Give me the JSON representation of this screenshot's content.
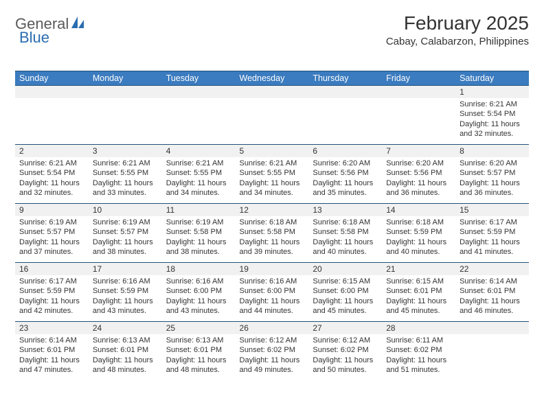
{
  "brand": {
    "part1": "General",
    "part2": "Blue"
  },
  "title": "February 2025",
  "location": "Cabay, Calabarzon, Philippines",
  "colors": {
    "header_bg": "#3b7bbf",
    "header_text": "#ffffff",
    "border": "#1f4f7a",
    "daynum_bg": "#f1f1f1",
    "text": "#333333",
    "logo_gray": "#5a5a5a",
    "logo_blue": "#2a6db0"
  },
  "weekdays": [
    "Sunday",
    "Monday",
    "Tuesday",
    "Wednesday",
    "Thursday",
    "Friday",
    "Saturday"
  ],
  "weeks": [
    [
      {
        "n": "",
        "lines": []
      },
      {
        "n": "",
        "lines": []
      },
      {
        "n": "",
        "lines": []
      },
      {
        "n": "",
        "lines": []
      },
      {
        "n": "",
        "lines": []
      },
      {
        "n": "",
        "lines": []
      },
      {
        "n": "1",
        "lines": [
          "Sunrise: 6:21 AM",
          "Sunset: 5:54 PM",
          "Daylight: 11 hours and 32 minutes."
        ]
      }
    ],
    [
      {
        "n": "2",
        "lines": [
          "Sunrise: 6:21 AM",
          "Sunset: 5:54 PM",
          "Daylight: 11 hours and 32 minutes."
        ]
      },
      {
        "n": "3",
        "lines": [
          "Sunrise: 6:21 AM",
          "Sunset: 5:55 PM",
          "Daylight: 11 hours and 33 minutes."
        ]
      },
      {
        "n": "4",
        "lines": [
          "Sunrise: 6:21 AM",
          "Sunset: 5:55 PM",
          "Daylight: 11 hours and 34 minutes."
        ]
      },
      {
        "n": "5",
        "lines": [
          "Sunrise: 6:21 AM",
          "Sunset: 5:55 PM",
          "Daylight: 11 hours and 34 minutes."
        ]
      },
      {
        "n": "6",
        "lines": [
          "Sunrise: 6:20 AM",
          "Sunset: 5:56 PM",
          "Daylight: 11 hours and 35 minutes."
        ]
      },
      {
        "n": "7",
        "lines": [
          "Sunrise: 6:20 AM",
          "Sunset: 5:56 PM",
          "Daylight: 11 hours and 36 minutes."
        ]
      },
      {
        "n": "8",
        "lines": [
          "Sunrise: 6:20 AM",
          "Sunset: 5:57 PM",
          "Daylight: 11 hours and 36 minutes."
        ]
      }
    ],
    [
      {
        "n": "9",
        "lines": [
          "Sunrise: 6:19 AM",
          "Sunset: 5:57 PM",
          "Daylight: 11 hours and 37 minutes."
        ]
      },
      {
        "n": "10",
        "lines": [
          "Sunrise: 6:19 AM",
          "Sunset: 5:57 PM",
          "Daylight: 11 hours and 38 minutes."
        ]
      },
      {
        "n": "11",
        "lines": [
          "Sunrise: 6:19 AM",
          "Sunset: 5:58 PM",
          "Daylight: 11 hours and 38 minutes."
        ]
      },
      {
        "n": "12",
        "lines": [
          "Sunrise: 6:18 AM",
          "Sunset: 5:58 PM",
          "Daylight: 11 hours and 39 minutes."
        ]
      },
      {
        "n": "13",
        "lines": [
          "Sunrise: 6:18 AM",
          "Sunset: 5:58 PM",
          "Daylight: 11 hours and 40 minutes."
        ]
      },
      {
        "n": "14",
        "lines": [
          "Sunrise: 6:18 AM",
          "Sunset: 5:59 PM",
          "Daylight: 11 hours and 40 minutes."
        ]
      },
      {
        "n": "15",
        "lines": [
          "Sunrise: 6:17 AM",
          "Sunset: 5:59 PM",
          "Daylight: 11 hours and 41 minutes."
        ]
      }
    ],
    [
      {
        "n": "16",
        "lines": [
          "Sunrise: 6:17 AM",
          "Sunset: 5:59 PM",
          "Daylight: 11 hours and 42 minutes."
        ]
      },
      {
        "n": "17",
        "lines": [
          "Sunrise: 6:16 AM",
          "Sunset: 5:59 PM",
          "Daylight: 11 hours and 43 minutes."
        ]
      },
      {
        "n": "18",
        "lines": [
          "Sunrise: 6:16 AM",
          "Sunset: 6:00 PM",
          "Daylight: 11 hours and 43 minutes."
        ]
      },
      {
        "n": "19",
        "lines": [
          "Sunrise: 6:16 AM",
          "Sunset: 6:00 PM",
          "Daylight: 11 hours and 44 minutes."
        ]
      },
      {
        "n": "20",
        "lines": [
          "Sunrise: 6:15 AM",
          "Sunset: 6:00 PM",
          "Daylight: 11 hours and 45 minutes."
        ]
      },
      {
        "n": "21",
        "lines": [
          "Sunrise: 6:15 AM",
          "Sunset: 6:01 PM",
          "Daylight: 11 hours and 45 minutes."
        ]
      },
      {
        "n": "22",
        "lines": [
          "Sunrise: 6:14 AM",
          "Sunset: 6:01 PM",
          "Daylight: 11 hours and 46 minutes."
        ]
      }
    ],
    [
      {
        "n": "23",
        "lines": [
          "Sunrise: 6:14 AM",
          "Sunset: 6:01 PM",
          "Daylight: 11 hours and 47 minutes."
        ]
      },
      {
        "n": "24",
        "lines": [
          "Sunrise: 6:13 AM",
          "Sunset: 6:01 PM",
          "Daylight: 11 hours and 48 minutes."
        ]
      },
      {
        "n": "25",
        "lines": [
          "Sunrise: 6:13 AM",
          "Sunset: 6:01 PM",
          "Daylight: 11 hours and 48 minutes."
        ]
      },
      {
        "n": "26",
        "lines": [
          "Sunrise: 6:12 AM",
          "Sunset: 6:02 PM",
          "Daylight: 11 hours and 49 minutes."
        ]
      },
      {
        "n": "27",
        "lines": [
          "Sunrise: 6:12 AM",
          "Sunset: 6:02 PM",
          "Daylight: 11 hours and 50 minutes."
        ]
      },
      {
        "n": "28",
        "lines": [
          "Sunrise: 6:11 AM",
          "Sunset: 6:02 PM",
          "Daylight: 11 hours and 51 minutes."
        ]
      },
      {
        "n": "",
        "lines": []
      }
    ]
  ]
}
